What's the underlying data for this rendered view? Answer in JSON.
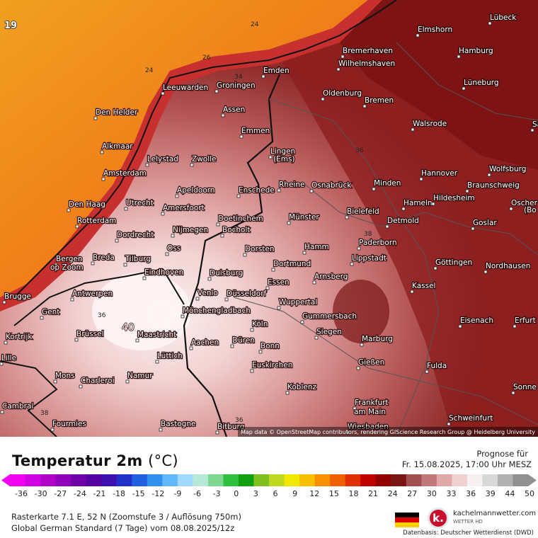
{
  "map": {
    "corner_value": "19",
    "attribution": "Map data © OpenStreetMap contributors, rendering GIScience Research Group @ Heidelberg University",
    "isolines": [
      "24",
      "26",
      "24",
      "34",
      "36",
      "38",
      "38",
      "36",
      "38",
      "36"
    ],
    "hotspot_value": "40",
    "cities": [
      {
        "name": "Lübeck"
      },
      {
        "name": "Elmshorn"
      },
      {
        "name": "Hamburg"
      },
      {
        "name": "Bremerhaven"
      },
      {
        "name": "Wilhelmshaven"
      },
      {
        "name": "Emden"
      },
      {
        "name": "Leeuwarden"
      },
      {
        "name": "Groningen"
      },
      {
        "name": "Oldenburg"
      },
      {
        "name": "Bremen"
      },
      {
        "name": "Lüneburg"
      },
      {
        "name": "Assen"
      },
      {
        "name": "Den Helder"
      },
      {
        "name": "Emmen"
      },
      {
        "name": "Walsrode"
      },
      {
        "name": "Salzw"
      },
      {
        "name": "Alkmaar"
      },
      {
        "name": "Lelystad"
      },
      {
        "name": "Zwolle"
      },
      {
        "name": "Lingen"
      },
      {
        "name": "(Ems)"
      },
      {
        "name": "Hannover"
      },
      {
        "name": "Wolfsburg"
      },
      {
        "name": "Amsterdam"
      },
      {
        "name": "Apeldoorn"
      },
      {
        "name": "Enschede"
      },
      {
        "name": "Rheine"
      },
      {
        "name": "Osnabrück"
      },
      {
        "name": "Minden"
      },
      {
        "name": "Braunschweig"
      },
      {
        "name": "Den Haag"
      },
      {
        "name": "Utrecht"
      },
      {
        "name": "Amersfoort"
      },
      {
        "name": "Hameln"
      },
      {
        "name": "Hildesheim"
      },
      {
        "name": "Oscher"
      },
      {
        "name": "(Bo"
      },
      {
        "name": "Rotterdam"
      },
      {
        "name": "Doetinchem"
      },
      {
        "name": "Bielefeld"
      },
      {
        "name": "Münster"
      },
      {
        "name": "Detmold"
      },
      {
        "name": "Goslar"
      },
      {
        "name": "Dordrecht"
      },
      {
        "name": "Nijmegen"
      },
      {
        "name": "Bocholt"
      },
      {
        "name": "Bergen"
      },
      {
        "name": "op Zoom"
      },
      {
        "name": "Breda"
      },
      {
        "name": "Oss"
      },
      {
        "name": "Dorsten"
      },
      {
        "name": "Hamm"
      },
      {
        "name": "Paderborn"
      },
      {
        "name": "Tilburg"
      },
      {
        "name": "Lippstadt"
      },
      {
        "name": "Göttingen"
      },
      {
        "name": "Nordhausen"
      },
      {
        "name": "Eindhoven"
      },
      {
        "name": "Dortmund"
      },
      {
        "name": "Duisburg"
      },
      {
        "name": "Arnsberg"
      },
      {
        "name": "Essen"
      },
      {
        "name": "Brugge"
      },
      {
        "name": "Antwerpen"
      },
      {
        "name": "Venlo"
      },
      {
        "name": "Düsseldorf"
      },
      {
        "name": "Kassel"
      },
      {
        "name": "Wuppertal"
      },
      {
        "name": "Gent"
      },
      {
        "name": "Mönchengladbach"
      },
      {
        "name": "Gummersbach"
      },
      {
        "name": "Eisenach"
      },
      {
        "name": "Erfurt"
      },
      {
        "name": "Brüssel"
      },
      {
        "name": "Köln"
      },
      {
        "name": "Siegen"
      },
      {
        "name": "Kortrijk"
      },
      {
        "name": "Maastricht"
      },
      {
        "name": "Aachen"
      },
      {
        "name": "Düren"
      },
      {
        "name": "Bonn"
      },
      {
        "name": "Marburg"
      },
      {
        "name": "Lille"
      },
      {
        "name": "Lüttich"
      },
      {
        "name": "Euskirchen"
      },
      {
        "name": "Gießen"
      },
      {
        "name": "Fulda"
      },
      {
        "name": "Mons"
      },
      {
        "name": "Namur"
      },
      {
        "name": "Charleroi"
      },
      {
        "name": "Koblenz"
      },
      {
        "name": "Sonne"
      },
      {
        "name": "Cambrai"
      },
      {
        "name": "Frankfurt"
      },
      {
        "name": "am Main"
      },
      {
        "name": "Schweinfurt"
      },
      {
        "name": "Fourmies"
      },
      {
        "name": "Bastogne"
      },
      {
        "name": "Bitburg"
      },
      {
        "name": "Wiesbaden"
      }
    ]
  },
  "legend": {
    "title": "Temperatur 2m",
    "unit": "(°C)",
    "forecast_label": "Prognose für",
    "forecast_time": "Fr. 15.08.2025, 17:00 Uhr MESZ",
    "ticks": [
      "-36",
      "-30",
      "-27",
      "-24",
      "-21",
      "-18",
      "-15",
      "-12",
      "-9",
      "-6",
      "-3",
      "0",
      "3",
      "6",
      "9",
      "12",
      "15",
      "18",
      "21",
      "24",
      "27",
      "30",
      "33",
      "36",
      "39",
      "44",
      "50"
    ],
    "colors": [
      "#f300f3",
      "#d000e0",
      "#b000c8",
      "#9000b8",
      "#7000a8",
      "#5500a0",
      "#3d10b0",
      "#2030c8",
      "#2060e0",
      "#3090f0",
      "#60b8f8",
      "#a0d8ff",
      "#b8e8d8",
      "#80d890",
      "#30c040",
      "#10a010",
      "#80c020",
      "#c0d820",
      "#f0e800",
      "#f8c000",
      "#f89000",
      "#f06000",
      "#e03000",
      "#c00000",
      "#900000",
      "#7a1515",
      "#a05050",
      "#c07878",
      "#e0a8a8",
      "#f0d0d0",
      "#f8f0f0",
      "#d8d8d8",
      "#b0b0b0",
      "#909090"
    ],
    "raster_info": "Rasterkarte 7.1 E, 52 N (Zoomstufe 3 / Auflösung 750m)",
    "model_info": "Global German Standard (7 Tage) vom 08.08.2025/12z",
    "brand": "kachelmannwetter.com",
    "brand_sub": "WETTER HD",
    "data_source": "Datenbasis: Deutscher Wetterdienst (DWD)"
  }
}
